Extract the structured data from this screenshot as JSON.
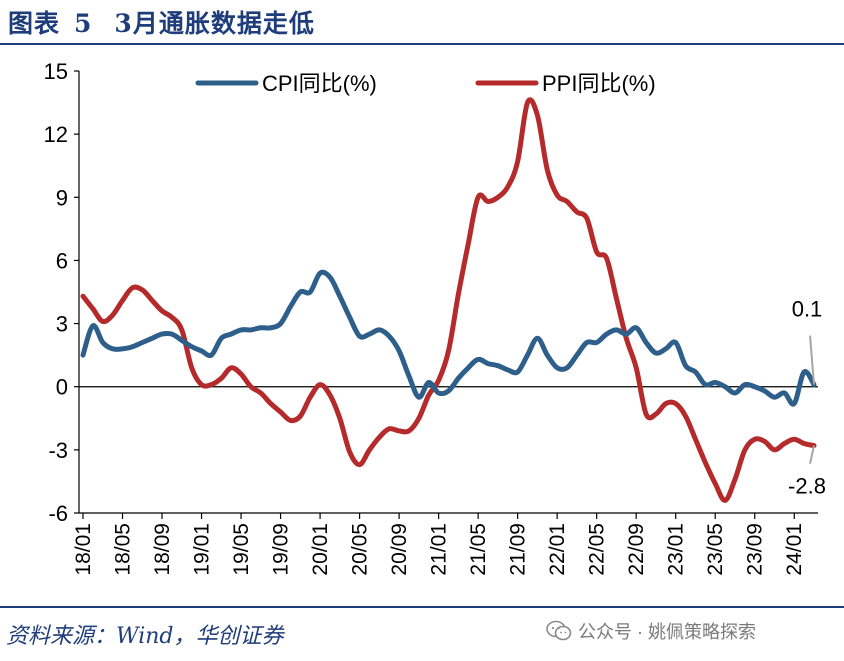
{
  "header": {
    "title_prefix": "图表",
    "title_number": "5",
    "title_text": "3月通胀数据走低"
  },
  "footer": {
    "source": "资料来源：Wind，华创证券",
    "watermark": "公众号 · 姚佩策略探索"
  },
  "chart_data": {
    "type": "line",
    "title": "3月通胀数据走低",
    "ylim": [
      -6,
      15
    ],
    "yticks": [
      "15",
      "12",
      "9",
      "6",
      "3",
      "0",
      "-3",
      "-6"
    ],
    "xtick_labels": [
      "18/01",
      "18/05",
      "18/09",
      "19/01",
      "19/05",
      "19/09",
      "20/01",
      "20/05",
      "20/09",
      "21/01",
      "21/05",
      "21/09",
      "22/01",
      "22/05",
      "22/09",
      "23/01",
      "23/05",
      "23/09",
      "24/01"
    ],
    "start": "2018-01",
    "end": "2024-03",
    "annotations": [
      {
        "series": "CPI同比(%)",
        "text": "0.1",
        "value": 0.1
      },
      {
        "series": "PPI同比(%)",
        "text": "-2.8",
        "value": -2.8
      }
    ],
    "series": [
      {
        "name": "CPI同比(%)",
        "color": "#2e5f8a",
        "values": [
          1.5,
          2.9,
          2.1,
          1.8,
          1.8,
          1.9,
          2.1,
          2.3,
          2.5,
          2.5,
          2.2,
          1.9,
          1.7,
          1.5,
          2.3,
          2.5,
          2.7,
          2.7,
          2.8,
          2.8,
          3.0,
          3.8,
          4.5,
          4.5,
          5.4,
          5.2,
          4.3,
          3.3,
          2.4,
          2.5,
          2.7,
          2.4,
          1.7,
          0.5,
          -0.5,
          0.2,
          -0.3,
          -0.2,
          0.4,
          0.9,
          1.3,
          1.1,
          1.0,
          0.8,
          0.7,
          1.5,
          2.3,
          1.5,
          0.9,
          0.9,
          1.5,
          2.1,
          2.1,
          2.5,
          2.7,
          2.5,
          2.8,
          2.1,
          1.6,
          1.8,
          2.1,
          1.0,
          0.7,
          0.1,
          0.2,
          0.0,
          -0.3,
          0.1,
          0.0,
          -0.2,
          -0.5,
          -0.3,
          -0.8,
          0.7,
          0.1
        ]
      },
      {
        "name": "PPI同比(%)",
        "color": "#b52a2a",
        "values": [
          4.3,
          3.7,
          3.1,
          3.4,
          4.1,
          4.7,
          4.6,
          4.1,
          3.6,
          3.3,
          2.7,
          0.9,
          0.1,
          0.1,
          0.4,
          0.9,
          0.6,
          0.0,
          -0.3,
          -0.8,
          -1.2,
          -1.6,
          -1.4,
          -0.5,
          0.1,
          -0.4,
          -1.5,
          -3.1,
          -3.7,
          -3.0,
          -2.4,
          -2.0,
          -2.1,
          -2.1,
          -1.5,
          -0.4,
          0.3,
          1.7,
          4.4,
          6.8,
          9.0,
          8.8,
          9.0,
          9.5,
          10.7,
          13.5,
          12.9,
          10.3,
          9.1,
          8.8,
          8.3,
          8.0,
          6.4,
          6.1,
          4.2,
          2.3,
          0.9,
          -1.3,
          -1.3,
          -0.8,
          -0.8,
          -1.4,
          -2.5,
          -3.6,
          -4.6,
          -5.4,
          -4.4,
          -3.0,
          -2.5,
          -2.6,
          -3.0,
          -2.7,
          -2.5,
          -2.7,
          -2.8
        ]
      }
    ]
  }
}
